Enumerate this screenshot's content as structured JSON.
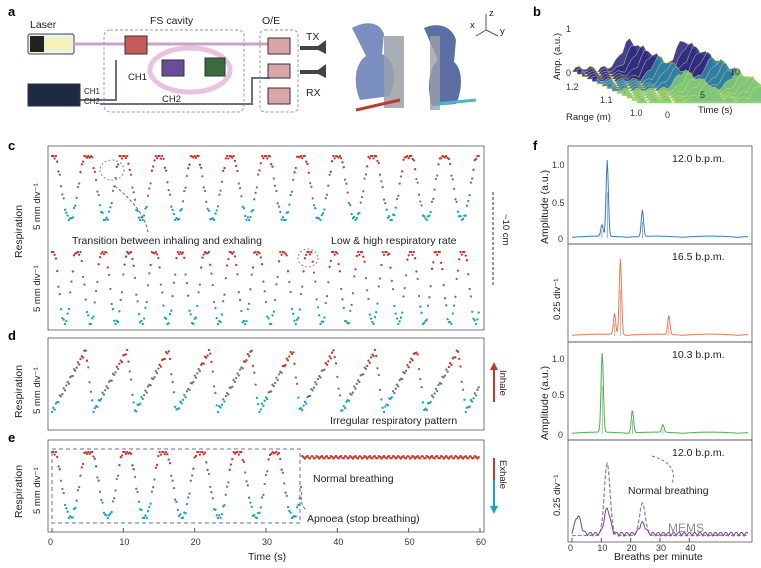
{
  "figure": {
    "panel_letters": {
      "a": "a",
      "b": "b",
      "c": "c",
      "d": "d",
      "e": "e",
      "f": "f"
    },
    "watermark": "MEMS",
    "colors": {
      "inhale_red": "#c0392b",
      "exhale_teal": "#17a2b8",
      "mid_gray": "#6c757d",
      "blue": "#3a78c2",
      "orange": "#e07b53",
      "green": "#4caf50",
      "purple": "#7b3fa0",
      "dashed_gray": "#8a7fa0"
    }
  },
  "panel_a": {
    "laser": "Laser",
    "fs_cavity": "FS cavity",
    "oe": "O/E",
    "tx": "TX",
    "rx": "RX",
    "ch1": "CH1",
    "ch2": "CH2",
    "scope_ch1": "CH1",
    "scope_ch2": "CH2",
    "axes": {
      "x": "x",
      "y": "y",
      "z": "z"
    }
  },
  "panel_b": {
    "zlabel": "Amp. (a.u.)",
    "zticks": [
      "1",
      "0"
    ],
    "range_label": "Range (m)",
    "range_ticks": [
      "1.2",
      "1.1",
      "1.0"
    ],
    "time_label": "Time (s)",
    "time_ticks": [
      "10",
      "5",
      "0"
    ]
  },
  "panel_c": {
    "ylabel": "Respiration",
    "scale_top": "5 mm div⁻¹",
    "scale_bottom": "5 mm div⁻¹",
    "annotation_transition": "Transition between inhaling and exhaling",
    "annotation_rate": "Low & high respiratory rate",
    "span_label": "~10 cm"
  },
  "panel_d": {
    "ylabel": "Respiration",
    "scale": "5 mm div⁻¹",
    "annotation": "Irregular respiratory pattern"
  },
  "panel_e": {
    "ylabel": "Respiration",
    "scale": "5 mm div⁻¹",
    "annotation_normal": "Normal breathing",
    "annotation_apnoea": "Apnoea (stop breathing)"
  },
  "side_labels": {
    "inhale": "Inhale",
    "exhale": "Exhale"
  },
  "chart_data": [
    {
      "type": "scatter",
      "panel": "c-top",
      "title": "",
      "xlabel": "Time (s)",
      "ylabel": "Respiration",
      "xlim": [
        0,
        60
      ],
      "series": [
        {
          "name": "respiration",
          "period_s": 5.0,
          "cycles": 12,
          "amplitude_mm": 10
        }
      ]
    },
    {
      "type": "scatter",
      "panel": "c-bottom",
      "xlabel": "Time (s)",
      "ylabel": "Respiration",
      "xlim": [
        0,
        60
      ],
      "series": [
        {
          "name": "respiration",
          "period_s": 3.6,
          "cycles": 16,
          "amplitude_mm": 10
        }
      ]
    },
    {
      "type": "scatter",
      "panel": "d",
      "xlabel": "Time (s)",
      "ylabel": "Respiration",
      "xlim": [
        0,
        60
      ],
      "series": [
        {
          "name": "respiration",
          "period_s": 5.8,
          "cycles": 10,
          "amplitude_mm": 10
        }
      ]
    },
    {
      "type": "scatter",
      "panel": "e",
      "xlabel": "Time (s)",
      "ylabel": "Respiration",
      "xlim": [
        0,
        60
      ],
      "xticks": [
        "0",
        "10",
        "20",
        "30",
        "40",
        "50",
        "60"
      ],
      "series": [
        {
          "name": "respiration",
          "period_s": 5.2,
          "cycles": 6,
          "apnoea_start_s": 35,
          "amplitude_mm": 10
        }
      ]
    },
    {
      "type": "line",
      "panel": "f1",
      "xlabel": "Breaths per minute",
      "ylabel": "Amplitude (a.u.)",
      "xlim": [
        0,
        60
      ],
      "ylim": [
        0,
        1.25
      ],
      "yticks": [
        "1.0",
        "0.5",
        "0"
      ],
      "annotation": "12.0 b.p.m.",
      "peaks": [
        {
          "x": 12.0,
          "y": 1.0
        },
        {
          "x": 24.0,
          "y": 0.35
        },
        {
          "x": 10.2,
          "y": 0.15
        }
      ]
    },
    {
      "type": "line",
      "panel": "f2",
      "xlabel": "Breaths per minute",
      "ylabel": "0.25 div⁻¹",
      "xlim": [
        0,
        60
      ],
      "annotation": "16.5 b.p.m.",
      "peaks": [
        {
          "x": 16.5,
          "y": 1.0
        },
        {
          "x": 33.0,
          "y": 0.25
        },
        {
          "x": 14.5,
          "y": 0.28
        }
      ]
    },
    {
      "type": "line",
      "panel": "f3",
      "xlabel": "Breaths per minute",
      "ylabel": "Amplitude (a.u.)",
      "xlim": [
        0,
        60
      ],
      "ylim": [
        0,
        1.25
      ],
      "yticks": [
        "1.0",
        "0.5",
        "0"
      ],
      "annotation": "10.3 b.p.m.",
      "peaks": [
        {
          "x": 10.3,
          "y": 1.05
        },
        {
          "x": 20.6,
          "y": 0.3
        },
        {
          "x": 31.0,
          "y": 0.1
        }
      ]
    },
    {
      "type": "line",
      "panel": "f4",
      "xlabel": "Breaths per minute",
      "ylabel": "0.25 div⁻¹",
      "xlim": [
        0,
        60
      ],
      "xticks": [
        "0",
        "10",
        "20",
        "30",
        "40"
      ],
      "annotation": "12.0 b.p.m.",
      "annotation_normal": "Normal breathing",
      "peaks_normal": [
        {
          "x": 12.0,
          "y": 1.0
        },
        {
          "x": 24.0,
          "y": 0.45
        }
      ],
      "peaks_apnoea": [
        {
          "x": 2.0,
          "y": 0.25
        },
        {
          "x": 12.0,
          "y": 0.35
        },
        {
          "x": 24.0,
          "y": 0.15
        }
      ]
    }
  ]
}
